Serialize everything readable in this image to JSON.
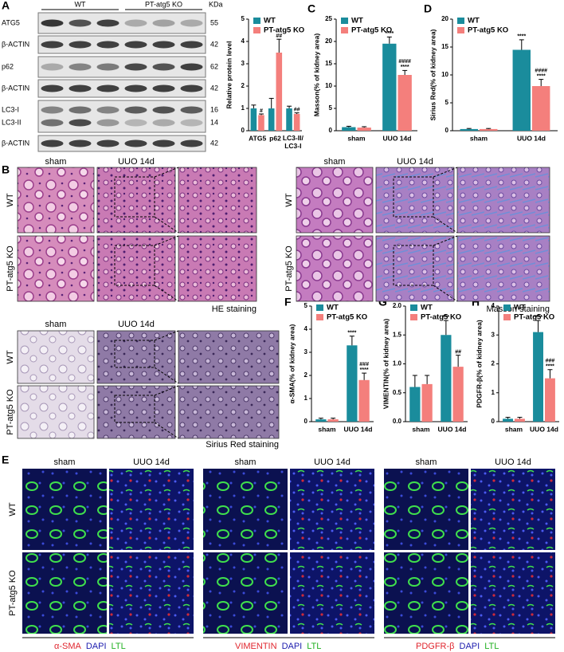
{
  "panel_labels": [
    "A",
    "B",
    "C",
    "D",
    "E",
    "F",
    "G",
    "H"
  ],
  "blot": {
    "groups": [
      "WT",
      "PT-atg5 KO"
    ],
    "unit": "KDa",
    "rows": [
      {
        "label": "ATG5",
        "kda": 55
      },
      {
        "label": "β-ACTIN",
        "kda": 42
      },
      {
        "label": "p62",
        "kda": 62
      },
      {
        "label": "β-ACTIN",
        "kda": 42
      },
      {
        "label": "LC3-I",
        "kda": 16
      },
      {
        "label": "LC3-II",
        "kda": 14
      },
      {
        "label": "β-ACTIN",
        "kda": 42
      }
    ]
  },
  "histology": {
    "columns": [
      "sham",
      "UUO 14d"
    ],
    "rows": [
      "WT",
      "PT-atg5 KO"
    ],
    "stains": [
      "HE staining",
      "Masson staining",
      "Sirius Red staining"
    ]
  },
  "immunofluorescence": {
    "columns": [
      "sham",
      "UUO 14d"
    ],
    "rows": [
      "WT",
      "PT-atg5 KO"
    ],
    "stains": [
      [
        "α-SMA",
        "DAPI",
        "LTL"
      ],
      [
        "VIMENTIN",
        "DAPI",
        "LTL"
      ],
      [
        "PDGFR-β",
        "DAPI",
        "LTL"
      ]
    ]
  },
  "chart_data": [
    {
      "type": "bar",
      "ylabel": "Relative protein level",
      "categories": [
        "ATG5",
        "p62",
        "LC3-II/LC3-I"
      ],
      "ylim": [
        0,
        5
      ],
      "yticks": [
        0,
        1,
        2,
        3,
        4,
        5
      ],
      "series": [
        {
          "name": "WT",
          "color": "#1a8c9c",
          "values": [
            1.0,
            1.0,
            1.0
          ],
          "errors": [
            0.15,
            0.45,
            0.1
          ],
          "significance": [
            null,
            null,
            null
          ]
        },
        {
          "name": "PT-atg5 KO",
          "color": "#f47f7c",
          "values": [
            0.7,
            3.5,
            0.75
          ],
          "errors": [
            0.05,
            0.6,
            0.05
          ],
          "significance": [
            "#",
            "##",
            "##"
          ]
        }
      ]
    },
    {
      "type": "bar",
      "ylabel": "Masson(% of kidney area)",
      "categories": [
        "sham",
        "UUO 14d"
      ],
      "ylim": [
        0,
        25
      ],
      "yticks": [
        0,
        5,
        10,
        15,
        20,
        25
      ],
      "series": [
        {
          "name": "WT",
          "color": "#1a8c9c",
          "values": [
            0.8,
            19.5
          ],
          "errors": [
            0.2,
            1.5
          ],
          "significance": [
            null,
            "****"
          ]
        },
        {
          "name": "PT-atg5 KO",
          "color": "#f47f7c",
          "values": [
            0.7,
            12.5
          ],
          "errors": [
            0.2,
            1.0
          ],
          "significance": [
            null,
            [
              "####",
              "****"
            ]
          ]
        }
      ]
    },
    {
      "type": "bar",
      "ylabel": "Sirius Red(% of kidney area)",
      "categories": [
        "sham",
        "UUO 14d"
      ],
      "ylim": [
        0,
        20
      ],
      "yticks": [
        0,
        5,
        10,
        15,
        20
      ],
      "series": [
        {
          "name": "WT",
          "color": "#1a8c9c",
          "values": [
            0.3,
            14.5
          ],
          "errors": [
            0.1,
            1.8
          ],
          "significance": [
            null,
            "****"
          ]
        },
        {
          "name": "PT-atg5 KO",
          "color": "#f47f7c",
          "values": [
            0.3,
            8
          ],
          "errors": [
            0.1,
            1.2
          ],
          "significance": [
            null,
            [
              "####",
              "****"
            ]
          ]
        }
      ]
    },
    {
      "type": "bar",
      "ylabel": "α-SMA(% of kidney area)",
      "categories": [
        "sham",
        "UUO 14d"
      ],
      "ylim": [
        0,
        5
      ],
      "yticks": [
        0,
        1,
        2,
        3,
        4,
        5
      ],
      "series": [
        {
          "name": "WT",
          "color": "#1a8c9c",
          "values": [
            0.1,
            3.3
          ],
          "errors": [
            0.05,
            0.4
          ],
          "significance": [
            null,
            "****"
          ]
        },
        {
          "name": "PT-atg5 KO",
          "color": "#f47f7c",
          "values": [
            0.1,
            1.8
          ],
          "errors": [
            0.05,
            0.3
          ],
          "significance": [
            null,
            [
              "###",
              "****"
            ]
          ]
        }
      ]
    },
    {
      "type": "bar",
      "ylabel": "VIMENTIN(% of kidney area)",
      "categories": [
        "sham",
        "UUO 14d"
      ],
      "ylim": [
        0,
        2
      ],
      "yticks": [
        {
          "value": 0,
          "label": "0.0"
        },
        0.5,
        {
          "value": 1,
          "label": "1.0"
        },
        1.5,
        {
          "value": 2,
          "label": "2.0"
        }
      ],
      "series": [
        {
          "name": "WT",
          "color": "#1a8c9c",
          "values": [
            0.6,
            1.5
          ],
          "errors": [
            0.2,
            0.25
          ],
          "significance": [
            null,
            "***"
          ]
        },
        {
          "name": "PT-atg5 KO",
          "color": "#f47f7c",
          "values": [
            0.65,
            0.95
          ],
          "errors": [
            0.15,
            0.2
          ],
          "significance": [
            null,
            "##"
          ]
        }
      ]
    },
    {
      "type": "bar",
      "ylabel": "PDGFR-β(% of kidney area)",
      "categories": [
        "sham",
        "UUO 14d"
      ],
      "ylim": [
        0,
        4
      ],
      "yticks": [
        0,
        1,
        2,
        3,
        4
      ],
      "series": [
        {
          "name": "WT",
          "color": "#1a8c9c",
          "values": [
            0.1,
            3.1
          ],
          "errors": [
            0.05,
            0.4
          ],
          "significance": [
            null,
            "****"
          ]
        },
        {
          "name": "PT-atg5 KO",
          "color": "#f47f7c",
          "values": [
            0.1,
            1.5
          ],
          "errors": [
            0.05,
            0.3
          ],
          "significance": [
            null,
            [
              "###",
              "****"
            ]
          ]
        }
      ]
    }
  ]
}
